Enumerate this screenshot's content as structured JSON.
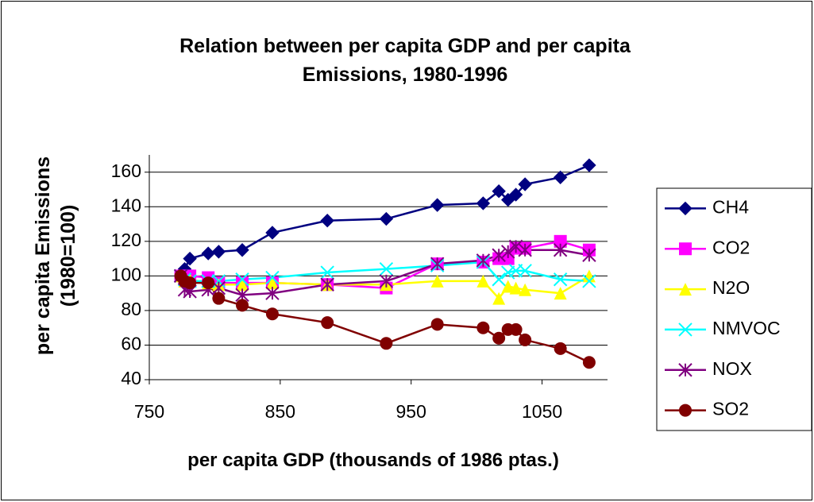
{
  "chart_data": {
    "type": "line",
    "title": "Relation between per capita GDP and per capita Emissions, 1980-1996",
    "x_label": "per capita GDP (thousands of 1986 ptas.)",
    "y_label": "per capita Emissions (1980=100)",
    "x": [
      774,
      777,
      781,
      795,
      803,
      821,
      844,
      886,
      931,
      970,
      1005,
      1017,
      1024,
      1030,
      1037,
      1064,
      1086
    ],
    "xlim": [
      750,
      1100
    ],
    "xticks": [
      750,
      850,
      950,
      1050
    ],
    "ylim": [
      40,
      170
    ],
    "yticks": [
      40,
      60,
      80,
      100,
      120,
      140,
      160
    ],
    "grid": true,
    "legend": "right",
    "series": [
      {
        "name": "CH4",
        "color": "#000080",
        "marker": "diamond",
        "values": [
          100,
          104,
          110,
          113,
          114,
          115,
          125,
          132,
          133,
          141,
          142,
          149,
          144,
          147,
          153,
          157,
          164
        ]
      },
      {
        "name": "CO2",
        "color": "#ff00ff",
        "marker": "square",
        "values": [
          100,
          99,
          100,
          99,
          96,
          96,
          96,
          95,
          93,
          107,
          108,
          110,
          110,
          116,
          116,
          120,
          115
        ]
      },
      {
        "name": "N2O",
        "color": "#ffff00",
        "marker": "triangle",
        "values": [
          100,
          97,
          98,
          96,
          95,
          95,
          96,
          95,
          95,
          97,
          97,
          87,
          94,
          93,
          92,
          90,
          100
        ]
      },
      {
        "name": "NMVOC",
        "color": "#00ffff",
        "marker": "x",
        "values": [
          100,
          98,
          97,
          97,
          97,
          98,
          99,
          102,
          104,
          106,
          108,
          98,
          102,
          103,
          103,
          98,
          97
        ]
      },
      {
        "name": "NOX",
        "color": "#800080",
        "marker": "star",
        "values": [
          100,
          92,
          91,
          92,
          93,
          89,
          90,
          95,
          97,
          107,
          109,
          112,
          114,
          117,
          115,
          115,
          112
        ]
      },
      {
        "name": "SO2",
        "color": "#800000",
        "marker": "circle",
        "values": [
          100,
          97,
          96,
          96,
          87,
          83,
          78,
          73,
          61,
          72,
          70,
          64,
          69,
          69,
          63,
          58,
          50
        ]
      }
    ]
  }
}
